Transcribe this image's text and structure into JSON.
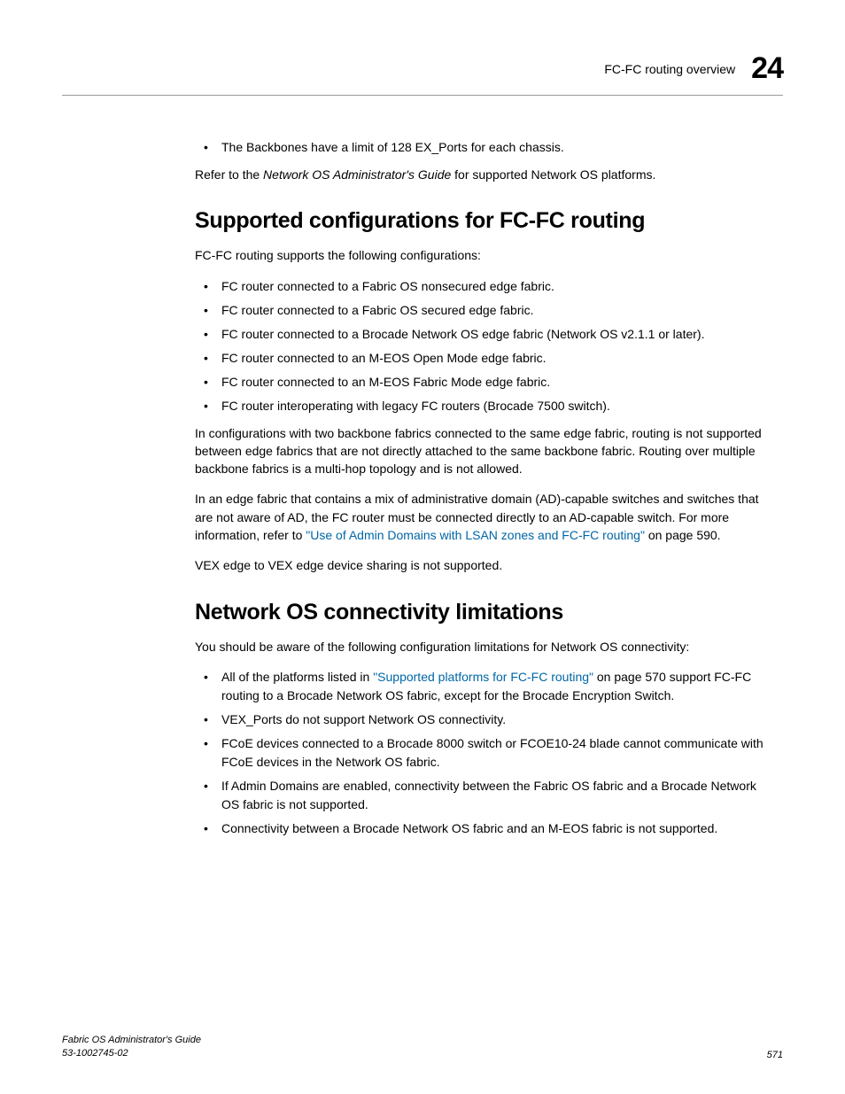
{
  "header": {
    "title": "FC-FC routing overview",
    "chapter": "24"
  },
  "intro_bullet": "The Backbones have a limit of 128 EX_Ports for each chassis.",
  "intro_para_pre": "Refer to the ",
  "intro_para_italic": "Network OS Administrator's Guide",
  "intro_para_post": " for supported Network OS platforms.",
  "section1": {
    "heading": "Supported configurations for FC-FC routing",
    "lead": "FC-FC routing supports the following configurations:",
    "bullets": [
      "FC router connected to a Fabric OS nonsecured edge fabric.",
      "FC router connected to a Fabric OS secured edge fabric.",
      "FC router connected to a Brocade Network OS edge fabric (Network OS v2.1.1 or later).",
      "FC router connected to an M-EOS Open Mode edge fabric.",
      "FC router connected to an M-EOS Fabric Mode edge fabric.",
      "FC router interoperating with legacy FC routers (Brocade 7500 switch)."
    ],
    "para1": "In configurations with two backbone fabrics connected to the same edge fabric, routing is not supported between edge fabrics that are not directly attached to the same backbone fabric. Routing over multiple backbone fabrics is a multi-hop topology and is not allowed.",
    "para2_pre": "In an edge fabric that contains a mix of administrative domain (AD)-capable switches and switches that are not aware of AD, the FC router must be connected directly to an AD-capable switch. For more information, refer to ",
    "para2_link": "\"Use of Admin Domains with LSAN zones and FC-FC routing\"",
    "para2_post": " on page 590.",
    "para3": "VEX edge to VEX edge device sharing is not supported."
  },
  "section2": {
    "heading": "Network OS connectivity limitations",
    "lead": "You should be aware of the following configuration limitations for Network OS connectivity:",
    "bullet0_pre": "All of the platforms listed in ",
    "bullet0_link": "\"Supported platforms for FC-FC routing\"",
    "bullet0_post": " on page 570 support FC-FC routing to a Brocade Network OS fabric, except for the Brocade Encryption Switch.",
    "bullets_rest": [
      "VEX_Ports do not support Network OS connectivity.",
      "FCoE devices connected to a Brocade 8000 switch or FCOE10-24 blade cannot communicate with FCoE devices in the Network OS fabric.",
      "If Admin Domains are enabled, connectivity between the Fabric OS fabric and a Brocade Network OS fabric is not supported.",
      "Connectivity between a Brocade Network OS fabric and an M-EOS fabric is not supported."
    ]
  },
  "footer": {
    "guide": "Fabric OS Administrator's Guide",
    "docnum": "53-1002745-02",
    "pagenum": "571"
  },
  "colors": {
    "link": "#0066a6",
    "text": "#000000",
    "rule": "#999999",
    "bg": "#ffffff"
  }
}
